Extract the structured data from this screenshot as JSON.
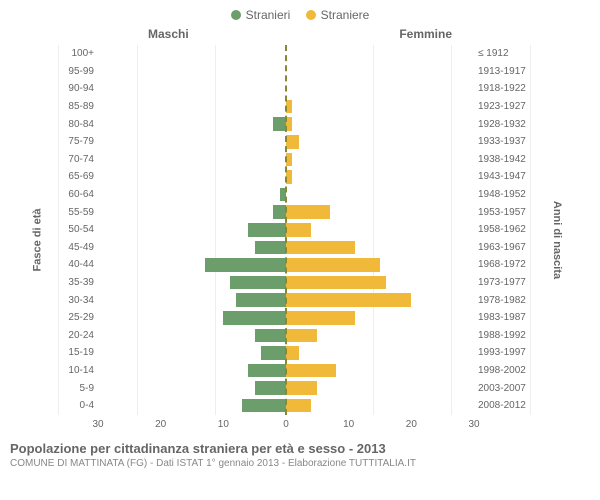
{
  "chart": {
    "type": "population-pyramid",
    "legend": {
      "male": {
        "label": "Stranieri",
        "color": "#6b9e6b"
      },
      "female": {
        "label": "Straniere",
        "color": "#f0b93a"
      }
    },
    "header_male": "Maschi",
    "header_female": "Femmine",
    "ylabel_left": "Fasce di età",
    "ylabel_right": "Anni di nascita",
    "x_max": 30,
    "x_ticks_left": [
      30,
      20,
      10,
      0
    ],
    "x_ticks_right": [
      0,
      10,
      20,
      30
    ],
    "bar_height_ratio": 0.78,
    "background_color": "#ffffff",
    "grid_color": "#eeeeee",
    "axis_text_color": "#666666",
    "centerline_color": "#888833",
    "rows": [
      {
        "age": "100+",
        "birth": "≤ 1912",
        "m": 0,
        "f": 0
      },
      {
        "age": "95-99",
        "birth": "1913-1917",
        "m": 0,
        "f": 0
      },
      {
        "age": "90-94",
        "birth": "1918-1922",
        "m": 0,
        "f": 0
      },
      {
        "age": "85-89",
        "birth": "1923-1927",
        "m": 0,
        "f": 1
      },
      {
        "age": "80-84",
        "birth": "1928-1932",
        "m": 2,
        "f": 1
      },
      {
        "age": "75-79",
        "birth": "1933-1937",
        "m": 0,
        "f": 2
      },
      {
        "age": "70-74",
        "birth": "1938-1942",
        "m": 0,
        "f": 1
      },
      {
        "age": "65-69",
        "birth": "1943-1947",
        "m": 0,
        "f": 1
      },
      {
        "age": "60-64",
        "birth": "1948-1952",
        "m": 1,
        "f": 0
      },
      {
        "age": "55-59",
        "birth": "1953-1957",
        "m": 2,
        "f": 7
      },
      {
        "age": "50-54",
        "birth": "1958-1962",
        "m": 6,
        "f": 4
      },
      {
        "age": "45-49",
        "birth": "1963-1967",
        "m": 5,
        "f": 11
      },
      {
        "age": "40-44",
        "birth": "1968-1972",
        "m": 13,
        "f": 15
      },
      {
        "age": "35-39",
        "birth": "1973-1977",
        "m": 9,
        "f": 16
      },
      {
        "age": "30-34",
        "birth": "1978-1982",
        "m": 8,
        "f": 20
      },
      {
        "age": "25-29",
        "birth": "1983-1987",
        "m": 10,
        "f": 11
      },
      {
        "age": "20-24",
        "birth": "1988-1992",
        "m": 5,
        "f": 5
      },
      {
        "age": "15-19",
        "birth": "1993-1997",
        "m": 4,
        "f": 2
      },
      {
        "age": "10-14",
        "birth": "1998-2002",
        "m": 6,
        "f": 8
      },
      {
        "age": "5-9",
        "birth": "2003-2007",
        "m": 5,
        "f": 5
      },
      {
        "age": "0-4",
        "birth": "2008-2012",
        "m": 7,
        "f": 4
      }
    ]
  },
  "title": "Popolazione per cittadinanza straniera per età e sesso - 2013",
  "subtitle": "COMUNE DI MATTINATA (FG) - Dati ISTAT 1° gennaio 2013 - Elaborazione TUTTITALIA.IT"
}
